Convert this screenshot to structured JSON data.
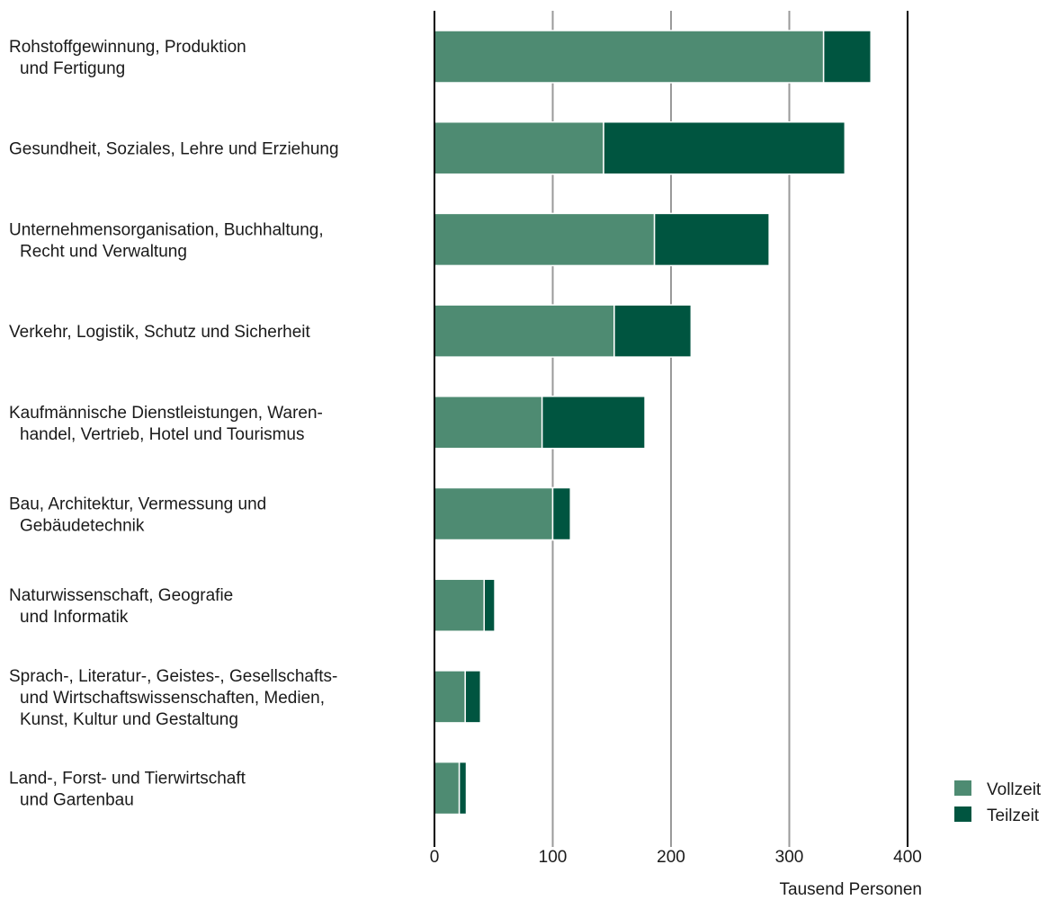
{
  "chart_data": {
    "type": "bar",
    "orientation": "horizontal",
    "stacked": true,
    "categories": [
      [
        "Rohstoffgewinnung, Produktion",
        "und Fertigung"
      ],
      [
        "Gesundheit, Soziales, Lehre und Erziehung"
      ],
      [
        "Unternehmensorganisation, Buchhaltung,",
        "Recht und Verwaltung"
      ],
      [
        "Verkehr, Logistik, Schutz und Sicherheit"
      ],
      [
        "Kaufmännische Dienstleistungen, Waren-",
        "handel, Vertrieb, Hotel und Tourismus"
      ],
      [
        "Bau, Architektur, Vermessung und",
        "Gebäudetechnik"
      ],
      [
        "Naturwissenschaft, Geografie",
        "und Informatik"
      ],
      [
        "Sprach-, Literatur-, Geistes-, Gesellschafts-",
        "und Wirtschaftswissenschaften, Medien,",
        "Kunst, Kultur und Gestaltung"
      ],
      [
        "Land-, Forst- und Tierwirtschaft",
        "und Gartenbau"
      ]
    ],
    "series": [
      {
        "name": "Vollzeit",
        "color": "#4e8b72",
        "values": [
          329,
          143,
          186,
          152,
          91,
          100,
          42,
          26,
          21
        ]
      },
      {
        "name": "Teilzeit",
        "color": "#005540",
        "values": [
          40,
          204,
          97,
          65,
          87,
          15,
          9,
          13,
          6
        ]
      }
    ],
    "xlabel": "Tausend Personen",
    "xlim": [
      0,
      400
    ],
    "xticks": [
      0,
      100,
      200,
      300,
      400
    ],
    "grid": true,
    "legend_position": "bottom-right"
  }
}
